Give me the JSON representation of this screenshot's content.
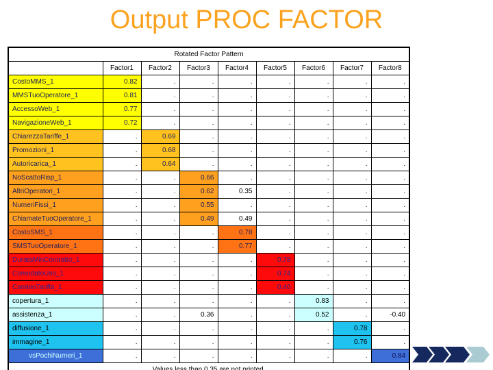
{
  "slide": {
    "title": "Output PROC FACTOR",
    "title_color": "#FAA21E"
  },
  "table": {
    "title": "Rotated Factor Pattern",
    "row_header": "",
    "columns": [
      "Factor1",
      "Factor2",
      "Factor3",
      "Factor4",
      "Factor5",
      "Factor6",
      "Factor7",
      "Factor8"
    ],
    "missing_symbol": ".",
    "footnote": "Values less than 0.35 are not printed.",
    "rows": [
      {
        "label": "CostoMMS_1",
        "group": "yellow",
        "primary_factor": 1,
        "values": [
          "0.82",
          null,
          null,
          null,
          null,
          null,
          null,
          null
        ]
      },
      {
        "label": "MMSTuoOperatore_1",
        "group": "yellow",
        "primary_factor": 1,
        "values": [
          "0.81",
          null,
          null,
          null,
          null,
          null,
          null,
          null
        ]
      },
      {
        "label": "AccessoWeb_1",
        "group": "yellow",
        "primary_factor": 1,
        "values": [
          "0.77",
          null,
          null,
          null,
          null,
          null,
          null,
          null
        ]
      },
      {
        "label": "NavigazioneWeb_1",
        "group": "yellow",
        "primary_factor": 1,
        "values": [
          "0.72",
          null,
          null,
          null,
          null,
          null,
          null,
          null
        ]
      },
      {
        "label": "ChiarezzaTariffe_1",
        "group": "light_orange",
        "primary_factor": 2,
        "values": [
          null,
          "0.69",
          null,
          null,
          null,
          null,
          null,
          null
        ]
      },
      {
        "label": "Promozioni_1",
        "group": "light_orange",
        "primary_factor": 2,
        "values": [
          null,
          "0.68",
          null,
          null,
          null,
          null,
          null,
          null
        ]
      },
      {
        "label": "Autoricarica_1",
        "group": "light_orange",
        "primary_factor": 2,
        "values": [
          null,
          "0.64",
          null,
          null,
          null,
          null,
          null,
          null
        ]
      },
      {
        "label": "NoScattoRisp_1",
        "group": "orange",
        "primary_factor": 3,
        "values": [
          null,
          null,
          "0.66",
          null,
          null,
          null,
          null,
          null
        ]
      },
      {
        "label": "AltriOperatori_1",
        "group": "orange",
        "primary_factor": 3,
        "values": [
          null,
          null,
          "0.62",
          "0.35",
          null,
          null,
          null,
          null
        ]
      },
      {
        "label": "NumeriFissi_1",
        "group": "orange",
        "primary_factor": 3,
        "values": [
          null,
          null,
          "0.55",
          null,
          null,
          null,
          null,
          null
        ]
      },
      {
        "label": "ChiamateTuoOperatore_1",
        "group": "orange",
        "primary_factor": 3,
        "values": [
          null,
          null,
          "0.49",
          "0.49",
          null,
          null,
          null,
          null
        ]
      },
      {
        "label": "CostoSMS_1",
        "group": "dark_orange",
        "primary_factor": 4,
        "values": [
          null,
          null,
          null,
          "0.78",
          null,
          null,
          null,
          null
        ]
      },
      {
        "label": "SMSTuoOperatore_1",
        "group": "dark_orange",
        "primary_factor": 4,
        "values": [
          null,
          null,
          null,
          "0.77",
          null,
          null,
          null,
          null
        ]
      },
      {
        "label": "DurataMinContratto_1",
        "group": "red",
        "primary_factor": 5,
        "values": [
          null,
          null,
          null,
          null,
          "0.78",
          null,
          null,
          null
        ]
      },
      {
        "label": "ComodatoUso_1",
        "group": "red",
        "primary_factor": 5,
        "values": [
          null,
          null,
          null,
          null,
          "0.74",
          null,
          null,
          null
        ]
      },
      {
        "label": "CambioTariffa_1",
        "group": "red",
        "primary_factor": 5,
        "values": [
          null,
          null,
          null,
          null,
          "0.40",
          null,
          null,
          null
        ]
      },
      {
        "label": "copertura_1",
        "group": "pale_cyan",
        "primary_factor": 6,
        "values": [
          null,
          null,
          null,
          null,
          null,
          "0.83",
          null,
          null
        ]
      },
      {
        "label": "assistenza_1",
        "group": "pale_cyan",
        "primary_factor": 6,
        "values": [
          null,
          null,
          "0.36",
          null,
          null,
          "0.52",
          null,
          "-0.40"
        ]
      },
      {
        "label": "diffusione_1",
        "group": "cyan",
        "primary_factor": 7,
        "values": [
          null,
          null,
          null,
          null,
          null,
          null,
          "0.78",
          null
        ]
      },
      {
        "label": "immagine_1",
        "group": "cyan",
        "primary_factor": 7,
        "values": [
          null,
          null,
          null,
          null,
          null,
          null,
          "0.76",
          null
        ]
      },
      {
        "label": "vsPochiNumeri_1",
        "group": "blue",
        "primary_factor": 8,
        "label_align": "center",
        "values": [
          null,
          null,
          null,
          null,
          null,
          null,
          null,
          "0.84"
        ]
      }
    ]
  },
  "groups": {
    "yellow": {
      "bg": "#FFFF00",
      "text": "#1F1F5A"
    },
    "light_orange": {
      "bg": "#FFC21E",
      "text": "#1F1F5A"
    },
    "orange": {
      "bg": "#FFA01E",
      "text": "#1F1F5A"
    },
    "dark_orange": {
      "bg": "#FF7315",
      "text": "#1F1F5A"
    },
    "red": {
      "bg": "#FF0A0A",
      "text": "#26268C"
    },
    "pale_cyan": {
      "bg": "#CCFFFF",
      "text": "#000000"
    },
    "cyan": {
      "bg": "#1FC3F0",
      "text": "#000000"
    },
    "blue": {
      "bg": "#3E6FD8",
      "text": "#CCFFFF",
      "value_text": "#0F0F4E"
    }
  },
  "decoration": {
    "chevron_colors": [
      "#16295E",
      "#16295E",
      "#16295E",
      "#A9CBD1"
    ]
  }
}
